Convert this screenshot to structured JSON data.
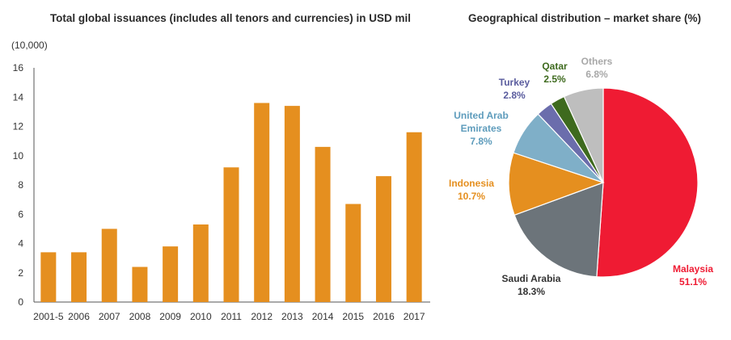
{
  "chart_data": [
    {
      "type": "bar",
      "title": "Total global issuances (includes all tenors and currencies) in USD mil",
      "ylabel": "(10,000)",
      "xlabel": "",
      "categories": [
        "2001-5",
        "2006",
        "2007",
        "2008",
        "2009",
        "2010",
        "2011",
        "2012",
        "2013",
        "2014",
        "2015",
        "2016",
        "2017"
      ],
      "values": [
        3.4,
        3.4,
        5.0,
        2.4,
        3.8,
        5.3,
        9.2,
        13.6,
        13.4,
        10.6,
        6.7,
        8.6,
        11.6
      ],
      "ylim": [
        0,
        16
      ],
      "yticks": [
        "0",
        "2",
        "4",
        "6",
        "8",
        "10",
        "12",
        "14",
        "16"
      ],
      "bar_color": "#E58F1F",
      "grid": false
    },
    {
      "type": "pie",
      "title": "Geographical distribution – market share (%)",
      "slices": [
        {
          "name": "Malaysia",
          "label": "51.1%",
          "value": 51.1,
          "color": "#EF1B33"
        },
        {
          "name": "Saudi Arabia",
          "label": "18.3%",
          "value": 18.3,
          "color": "#6C747A"
        },
        {
          "name": "Indonesia",
          "label": "10.7%",
          "value": 10.7,
          "color": "#E58F1F"
        },
        {
          "name_lines": [
            "United Arab",
            "Emirates"
          ],
          "label": "7.8%",
          "value": 7.8,
          "color": "#7FAFC8"
        },
        {
          "name": "Turkey",
          "label": "2.8%",
          "value": 2.8,
          "color": "#6B6DAC"
        },
        {
          "name": "Qatar",
          "label": "2.5%",
          "value": 2.5,
          "color": "#3E6A1E"
        },
        {
          "name": "Others",
          "label": "6.8%",
          "value": 6.8,
          "color": "#BEBEBE"
        }
      ],
      "label_colors": {
        "Malaysia": "#EF1B33",
        "Saudi Arabia": "#333333",
        "Indonesia": "#E58F1F",
        "United Arab Emirates": "#5E9CBC",
        "Turkey": "#5A5C9E",
        "Qatar": "#3E6A1E",
        "Others": "#A8A8A8"
      }
    }
  ]
}
